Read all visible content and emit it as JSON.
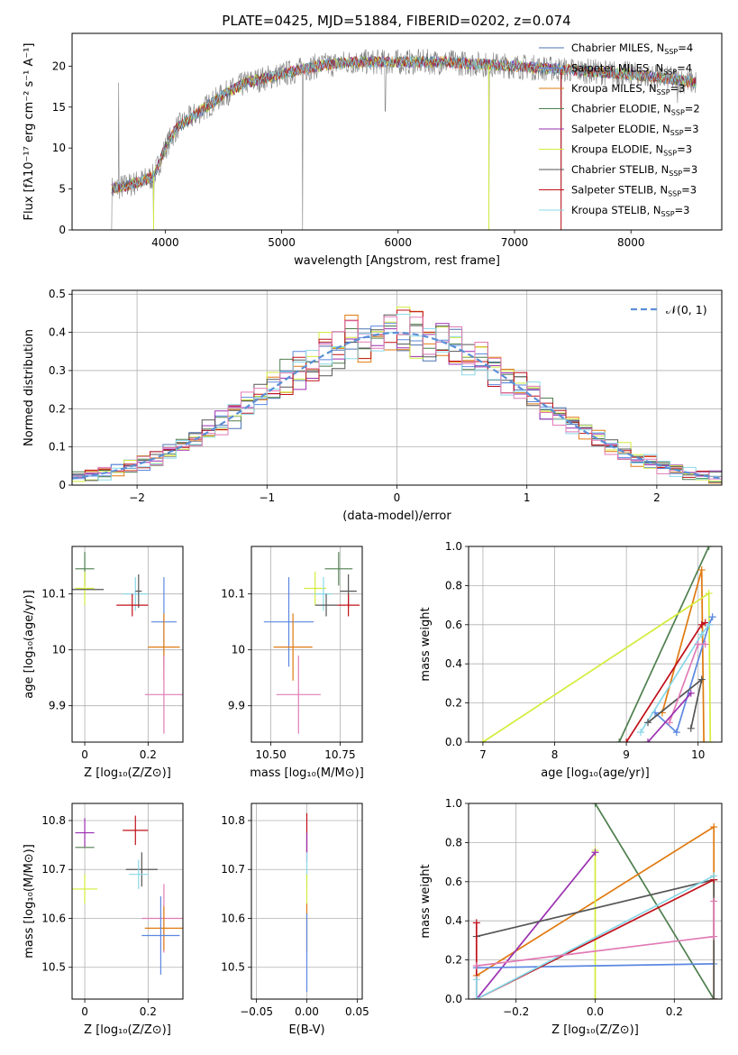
{
  "figure": {
    "title": "PLATE=0425, MJD=51884, FIBERID=0202, z=0.074"
  },
  "colors": {
    "Chabrier MILES": "#4c72b0",
    "Salpeter MILES": "#5b87e0",
    "Kroupa MILES": "#e07a10",
    "Chabrier ELODIE": "#4f7f4f",
    "Salpeter ELODIE": "#9a2fb0",
    "Kroupa ELODIE": "#d4ec3c",
    "Chabrier STELIB": "#555555",
    "Salpeter STELIB": "#c0101a",
    "Kroupa STELIB": "#88d8e8",
    "pink": "#e07bb5",
    "data": "#808080",
    "gauss": "#5b8fd6",
    "grid": "#b0b0b0"
  },
  "chart_data": [
    {
      "id": "spectrum",
      "type": "line",
      "xlabel": "wavelength [Angstrom, rest frame]",
      "ylabel": "Flux [fλ10⁻¹⁷ erg cm⁻² s⁻¹ A⁻¹]",
      "xlim": [
        3200,
        8780
      ],
      "ylim": [
        0,
        24
      ],
      "xticks": [
        4000,
        5000,
        6000,
        7000,
        8000
      ],
      "yticks": [
        0,
        5,
        10,
        15,
        20
      ],
      "grid": false,
      "legend_position": "right",
      "legend": [
        {
          "name": "Chabrier MILES",
          "nssp": "4"
        },
        {
          "name": "Salpeter MILES",
          "nssp": "4"
        },
        {
          "name": "Kroupa MILES",
          "nssp": "3"
        },
        {
          "name": "Chabrier ELODIE",
          "nssp": "2"
        },
        {
          "name": "Salpeter ELODIE",
          "nssp": "3"
        },
        {
          "name": "Kroupa ELODIE",
          "nssp": "3"
        },
        {
          "name": "Chabrier STELIB",
          "nssp": "3"
        },
        {
          "name": "Salpeter STELIB",
          "nssp": "3"
        },
        {
          "name": "Kroupa STELIB",
          "nssp": "3"
        }
      ],
      "data_range": [
        3540,
        8560
      ],
      "continuum": {
        "x": [
          3540,
          3700,
          3800,
          3900,
          4000,
          4100,
          4200,
          4300,
          4500,
          4700,
          5000,
          5300,
          5600,
          6000,
          6400,
          7000,
          7500,
          8000,
          8300,
          8560
        ],
        "y": [
          5.0,
          5.5,
          6.0,
          6.5,
          10.0,
          12.5,
          13.5,
          14.5,
          16.5,
          18.0,
          19.0,
          20.0,
          20.5,
          20.5,
          20.5,
          20.0,
          19.5,
          19.0,
          18.5,
          18.0
        ]
      },
      "spikes": [
        {
          "x": 3540,
          "y": 0
        },
        {
          "x": 3600,
          "y": 18
        },
        {
          "x": 3900,
          "y": 0
        },
        {
          "x": 5180,
          "y": 0
        },
        {
          "x": 5890,
          "y": 14.5
        },
        {
          "x": 6780,
          "y": 0
        },
        {
          "x": 7400,
          "y": 0
        },
        {
          "x": 8400,
          "y": 15.5
        }
      ]
    },
    {
      "id": "residuals",
      "type": "line",
      "xlabel": "(data-model)/error",
      "ylabel": "Normed distribution",
      "xlim": [
        -2.5,
        2.5
      ],
      "ylim": [
        0,
        0.51
      ],
      "xticks": [
        -2,
        -1,
        0,
        1,
        2
      ],
      "yticks": [
        0.0,
        0.1,
        0.2,
        0.3,
        0.4,
        0.5
      ],
      "grid": true,
      "legend_position": "top-right",
      "legend": [
        {
          "name": "𝒩(0, 1)"
        }
      ],
      "bin_width": 0.1
    },
    {
      "id": "age-vs-z",
      "type": "scatter",
      "xlabel": "Z [log₁₀(Z/Z⊙)]",
      "ylabel": "age [log₁₀(age/yr)]",
      "xlim": [
        -0.04,
        0.31
      ],
      "ylim": [
        9.835,
        10.185
      ],
      "xticks": [
        0.0,
        0.2
      ],
      "yticks": [
        9.9,
        10.0,
        10.1
      ],
      "grid": true,
      "points": [
        {
          "x": 0.0,
          "y": 10.145,
          "xerr": 0.03,
          "yerr": 0.03,
          "color": "#4f7f4f"
        },
        {
          "x": 0.0,
          "y": 10.11,
          "xerr": 0.03,
          "yerr": 0.03,
          "color": "#d4ec3c"
        },
        {
          "x": 0.0,
          "y": 10.108,
          "xerr": 0.06,
          "yerr": 0.0,
          "color": "#555555"
        },
        {
          "x": 0.16,
          "y": 10.1,
          "xerr": 0.04,
          "yerr": 0.03,
          "color": "#88d8e8"
        },
        {
          "x": 0.17,
          "y": 10.105,
          "xerr": 0.01,
          "yerr": 0.03,
          "color": "#555555"
        },
        {
          "x": 0.15,
          "y": 10.08,
          "xerr": 0.05,
          "yerr": 0.02,
          "color": "#c0101a"
        },
        {
          "x": 0.25,
          "y": 10.05,
          "xerr": 0.04,
          "yerr": 0.08,
          "color": "#5b87e0"
        },
        {
          "x": 0.25,
          "y": 10.005,
          "xerr": 0.05,
          "yerr": 0.06,
          "color": "#e07a10"
        },
        {
          "x": 0.25,
          "y": 9.92,
          "xerr": 0.06,
          "yerr": 0.07,
          "color": "#e07bb5"
        }
      ]
    },
    {
      "id": "age-vs-mass",
      "type": "scatter",
      "xlabel": "mass [log₁₀(M/M⊙)]",
      "ylabel": "",
      "xlim": [
        10.43,
        10.83
      ],
      "ylim": [
        9.835,
        10.185
      ],
      "xticks": [
        10.5,
        10.75
      ],
      "xticklabels": [
        "10.50",
        "10.75"
      ],
      "yticks": [
        9.9,
        10.0,
        10.1
      ],
      "grid": true,
      "points": [
        {
          "x": 10.745,
          "y": 10.145,
          "xerr": 0.05,
          "yerr": 0.03,
          "color": "#4f7f4f"
        },
        {
          "x": 10.66,
          "y": 10.11,
          "xerr": 0.04,
          "yerr": 0.03,
          "color": "#d4ec3c"
        },
        {
          "x": 10.78,
          "y": 10.105,
          "xerr": 0.03,
          "yerr": 0.03,
          "color": "#555555"
        },
        {
          "x": 10.69,
          "y": 10.1,
          "xerr": 0.03,
          "yerr": 0.03,
          "color": "#88d8e8"
        },
        {
          "x": 10.78,
          "y": 10.08,
          "xerr": 0.04,
          "yerr": 0.02,
          "color": "#c0101a"
        },
        {
          "x": 10.7,
          "y": 10.08,
          "xerr": 0.04,
          "yerr": 0.02,
          "color": "#555555"
        },
        {
          "x": 10.565,
          "y": 10.05,
          "xerr": 0.09,
          "yerr": 0.08,
          "color": "#5b87e0"
        },
        {
          "x": 10.58,
          "y": 10.005,
          "xerr": 0.07,
          "yerr": 0.06,
          "color": "#e07a10"
        },
        {
          "x": 10.6,
          "y": 9.92,
          "xerr": 0.08,
          "yerr": 0.07,
          "color": "#e07bb5"
        }
      ]
    },
    {
      "id": "weight-vs-age",
      "type": "line",
      "xlabel": "age [log₁₀(age/yr)]",
      "ylabel": "mass weight",
      "xlim": [
        6.8,
        10.33
      ],
      "ylim": [
        0,
        1
      ],
      "xticks": [
        7,
        8,
        9,
        10
      ],
      "yticks": [
        0.0,
        0.2,
        0.4,
        0.6,
        0.8,
        1.0
      ],
      "yticklabels": [
        "0.0",
        "0.2",
        "0.4",
        "0.6",
        "0.8",
        "1.0"
      ],
      "grid": true,
      "series": [
        {
          "color": "#4f7f4f",
          "x": [
            8.9,
            10.15
          ],
          "y": [
            0.0,
            1.0
          ]
        },
        {
          "color": "#e07a10",
          "x": [
            9.5,
            10.05,
            10.08
          ],
          "y": [
            0.15,
            0.88,
            0.0
          ]
        },
        {
          "color": "#d4ec3c",
          "x": [
            7.0,
            10.15,
            10.17
          ],
          "y": [
            0.0,
            0.76,
            0.0
          ]
        },
        {
          "color": "#5b87e0",
          "x": [
            9.4,
            9.7,
            10.15,
            10.2
          ],
          "y": [
            0.15,
            0.05,
            0.6,
            0.64
          ]
        },
        {
          "color": "#c0101a",
          "x": [
            9.0,
            10.05,
            10.1
          ],
          "y": [
            0.0,
            0.6,
            0.61
          ]
        },
        {
          "color": "#88d8e8",
          "x": [
            9.2,
            10.05,
            10.15
          ],
          "y": [
            0.05,
            0.55,
            0.6
          ]
        },
        {
          "color": "#555555",
          "x": [
            9.3,
            10.05,
            9.9
          ],
          "y": [
            0.1,
            0.32,
            0.07
          ]
        },
        {
          "color": "#e07bb5",
          "x": [
            9.6,
            10.0,
            10.1
          ],
          "y": [
            0.1,
            0.5,
            0.5
          ]
        },
        {
          "color": "#9a2fb0",
          "x": [
            9.3,
            9.9
          ],
          "y": [
            0.0,
            0.25
          ]
        }
      ]
    },
    {
      "id": "mass-vs-z",
      "type": "scatter",
      "xlabel": "Z [log₁₀(Z/Z⊙)]",
      "ylabel": "mass [log₁₀(M/M⊙)]",
      "xlim": [
        -0.04,
        0.31
      ],
      "ylim": [
        10.435,
        10.835
      ],
      "xticks": [
        0.0,
        0.2
      ],
      "yticks": [
        10.5,
        10.6,
        10.7,
        10.8
      ],
      "grid": true,
      "points": [
        {
          "x": 0.0,
          "y": 10.775,
          "xerr": 0.03,
          "yerr": 0.03,
          "color": "#9a2fb0"
        },
        {
          "x": 0.0,
          "y": 10.745,
          "xerr": 0.03,
          "yerr": 0.0,
          "color": "#4f7f4f"
        },
        {
          "x": 0.0,
          "y": 10.66,
          "xerr": 0.04,
          "yerr": 0.03,
          "color": "#d4ec3c"
        },
        {
          "x": 0.16,
          "y": 10.78,
          "xerr": 0.04,
          "yerr": 0.03,
          "color": "#c0101a"
        },
        {
          "x": 0.18,
          "y": 10.7,
          "xerr": 0.05,
          "yerr": 0.035,
          "color": "#555555"
        },
        {
          "x": 0.17,
          "y": 10.69,
          "xerr": 0.03,
          "yerr": 0.03,
          "color": "#88d8e8"
        },
        {
          "x": 0.25,
          "y": 10.6,
          "xerr": 0.07,
          "yerr": 0.07,
          "color": "#e07bb5"
        },
        {
          "x": 0.25,
          "y": 10.58,
          "xerr": 0.06,
          "yerr": 0.045,
          "color": "#e07a10"
        },
        {
          "x": 0.24,
          "y": 10.565,
          "xerr": 0.06,
          "yerr": 0.08,
          "color": "#5b87e0"
        }
      ]
    },
    {
      "id": "mass-vs-ebv",
      "type": "scatter",
      "xlabel": "E(B-V)",
      "ylabel": "",
      "xlim": [
        -0.055,
        0.055
      ],
      "ylim": [
        10.435,
        10.835
      ],
      "xticks": [
        -0.05,
        0.0,
        0.05
      ],
      "xticklabels": [
        "−0.05",
        "0.00",
        "0.05"
      ],
      "yticks": [
        10.5,
        10.6,
        10.7,
        10.8
      ],
      "grid": true,
      "points": [
        {
          "x": 0.0,
          "y": 10.775,
          "xerr": 0,
          "yerr": 0.04,
          "color": "#c0101a"
        },
        {
          "x": 0.0,
          "y": 10.745,
          "xerr": 0,
          "yerr": 0.03,
          "color": "#9a2fb0"
        },
        {
          "x": 0.0,
          "y": 10.7,
          "xerr": 0,
          "yerr": 0.035,
          "color": "#88d8e8"
        },
        {
          "x": 0.0,
          "y": 10.66,
          "xerr": 0,
          "yerr": 0.03,
          "color": "#d4ec3c"
        },
        {
          "x": 0.0,
          "y": 10.58,
          "xerr": 0,
          "yerr": 0.05,
          "color": "#e07a10"
        },
        {
          "x": 0.0,
          "y": 10.53,
          "xerr": 0,
          "yerr": 0.08,
          "color": "#5b87e0"
        }
      ]
    },
    {
      "id": "weight-vs-z",
      "type": "line",
      "xlabel": "Z [log₁₀(Z/Z⊙)]",
      "ylabel": "mass weight",
      "xlim": [
        -0.32,
        0.32
      ],
      "ylim": [
        0,
        1
      ],
      "xticks": [
        -0.2,
        0.0,
        0.2
      ],
      "xticklabels": [
        "−0.2",
        "0.0",
        "0.2"
      ],
      "yticks": [
        0.0,
        0.2,
        0.4,
        0.6,
        0.8,
        1.0
      ],
      "yticklabels": [
        "0.0",
        "0.2",
        "0.4",
        "0.6",
        "0.8",
        "1.0"
      ],
      "grid": true,
      "series": [
        {
          "color": "#4f7f4f",
          "x": [
            0.0,
            0.3
          ],
          "y": [
            1.0,
            0.0
          ]
        },
        {
          "color": "#e07a10",
          "x": [
            -0.3,
            0.3,
            0.3
          ],
          "y": [
            0.12,
            0.88,
            0.0
          ]
        },
        {
          "color": "#d4ec3c",
          "x": [
            0.0,
            0.0
          ],
          "y": [
            0.0,
            0.76
          ]
        },
        {
          "color": "#9a2fb0",
          "x": [
            -0.3,
            0.0
          ],
          "y": [
            0.0,
            0.75
          ]
        },
        {
          "color": "#5b87e0",
          "x": [
            -0.3,
            0.3
          ],
          "y": [
            0.16,
            0.18
          ]
        },
        {
          "color": "#555555",
          "x": [
            -0.3,
            0.3,
            0.3
          ],
          "y": [
            0.32,
            0.61,
            0.0
          ]
        },
        {
          "color": "#c0101a",
          "x": [
            -0.3,
            -0.3,
            0.3
          ],
          "y": [
            0.39,
            0.0,
            0.61
          ]
        },
        {
          "color": "#88d8e8",
          "x": [
            -0.3,
            -0.3,
            0.3
          ],
          "y": [
            0.1,
            0.0,
            0.63
          ]
        },
        {
          "color": "#e07bb5",
          "x": [
            -0.3,
            0.3,
            0.3
          ],
          "y": [
            0.17,
            0.32,
            0.5
          ]
        }
      ]
    }
  ]
}
